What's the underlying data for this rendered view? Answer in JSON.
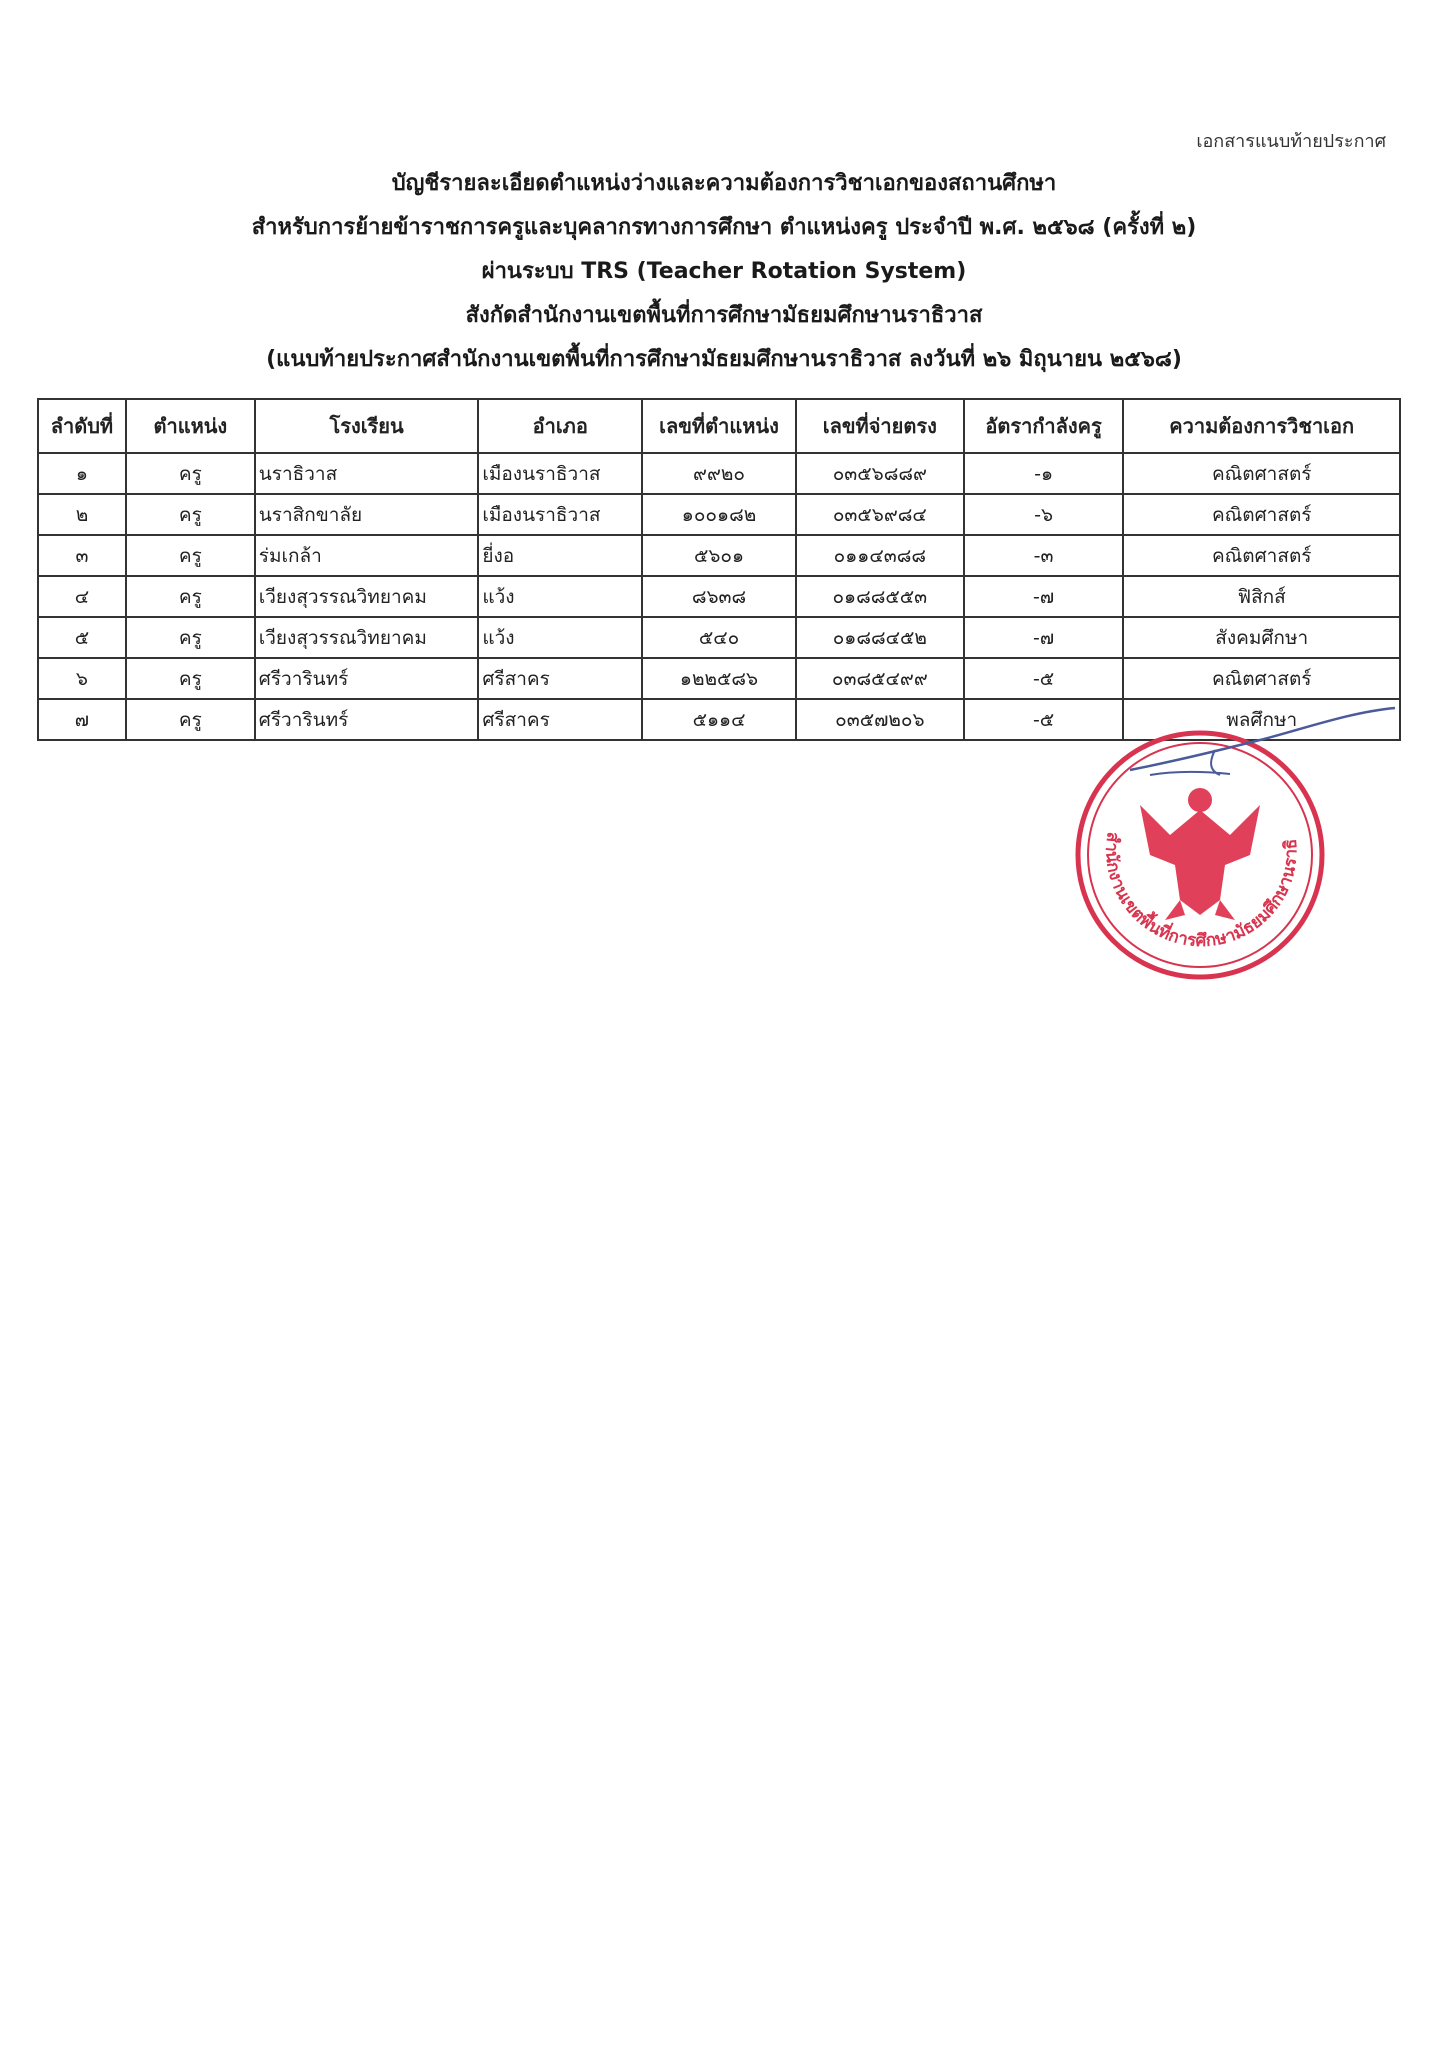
{
  "header_note": "เอกสารแนบท้ายประกาศ",
  "titles": [
    "บัญชีรายละเอียดตำแหน่งว่างและความต้องการวิชาเอกของสถานศึกษา",
    "สำหรับการย้ายข้าราชการครูและบุคลากรทางการศึกษา ตำแหน่งครู ประจำปี พ.ศ. ๒๕๖๘ (ครั้งที่ ๒)",
    "ผ่านระบบ TRS (Teacher Rotation System)",
    "สังกัดสำนักงานเขตพื้นที่การศึกษามัธยมศึกษานราธิวาส",
    "(แนบท้ายประกาศสำนักงานเขตพื้นที่การศึกษามัธยมศึกษานราธิวาส ลงวันที่ ๒๖ มิถุนายน ๒๕๖๘)"
  ],
  "table": {
    "headers": [
      "ลำดับที่",
      "ตำแหน่ง",
      "โรงเรียน",
      "อำเภอ",
      "เลขที่ตำแหน่ง",
      "เลขที่จ่ายตรง",
      "อัตรากำลังครู",
      "ความต้องการวิชาเอก"
    ],
    "rows": [
      [
        "๑",
        "ครู",
        "นราธิวาส",
        "เมืองนราธิวาส",
        "๙๙๒๐",
        "๐๓๕๖๘๘๙",
        "-๑",
        "คณิตศาสตร์"
      ],
      [
        "๒",
        "ครู",
        "นราสิกขาลัย",
        "เมืองนราธิวาส",
        "๑๐๐๑๘๒",
        "๐๓๕๖๙๘๔",
        "-๖",
        "คณิตศาสตร์"
      ],
      [
        "๓",
        "ครู",
        "ร่มเกล้า",
        "ยี่งอ",
        "๕๖๐๑",
        "๐๑๑๔๓๘๘",
        "-๓",
        "คณิตศาสตร์"
      ],
      [
        "๔",
        "ครู",
        "เวียงสุวรรณวิทยาคม",
        "แว้ง",
        "๘๖๓๘",
        "๐๑๘๘๕๕๓",
        "-๗",
        "ฟิสิกส์"
      ],
      [
        "๕",
        "ครู",
        "เวียงสุวรรณวิทยาคม",
        "แว้ง",
        "๕๔๐",
        "๐๑๘๘๔๕๒",
        "-๗",
        "สังคมศึกษา"
      ],
      [
        "๖",
        "ครู",
        "ศรีวารินทร์",
        "ศรีสาคร",
        "๑๒๒๕๘๖",
        "๐๓๘๕๔๙๙",
        "-๕",
        "คณิตศาสตร์"
      ],
      [
        "๗",
        "ครู",
        "ศรีวารินทร์",
        "ศรีสาคร",
        "๕๑๑๔",
        "๐๓๕๗๒๐๖",
        "-๕",
        "พลศึกษา"
      ]
    ]
  },
  "stamp": {
    "text": "สำนักงานเขตพื้นที่การศึกษามัธยมศึกษานราธิวาส",
    "color": "#d8344f",
    "emblem": "garuda-emblem"
  },
  "signature_color": "#4a5a9a"
}
